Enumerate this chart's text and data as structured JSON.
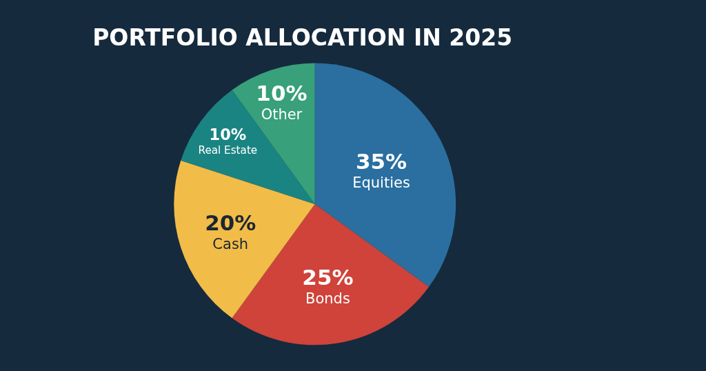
{
  "chart_data": {
    "type": "pie",
    "title": "PORTFOLIO ALLOCATION IN 2025",
    "categories": [
      "Equities",
      "Bonds",
      "Cash",
      "Real Estate",
      "Other"
    ],
    "values": [
      35,
      25,
      20,
      10,
      10
    ],
    "value_labels": [
      "35%",
      "25%",
      "20%",
      "10%",
      "10%"
    ],
    "colors": [
      "#2a6fa0",
      "#cf433a",
      "#f1bc48",
      "#1a8483",
      "#38a07a"
    ]
  }
}
